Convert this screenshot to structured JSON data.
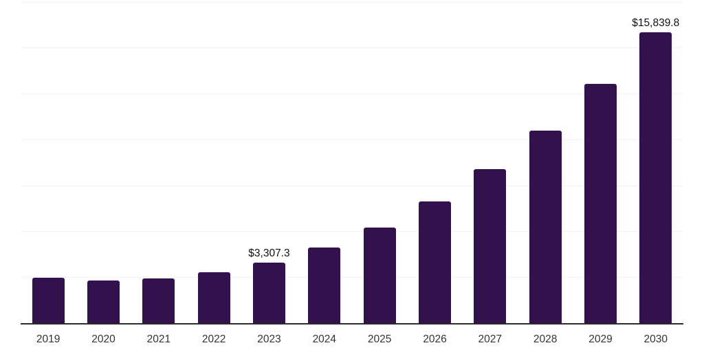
{
  "chart_data": {
    "type": "bar",
    "categories": [
      "2019",
      "2020",
      "2021",
      "2022",
      "2023",
      "2024",
      "2025",
      "2026",
      "2027",
      "2028",
      "2029",
      "2030"
    ],
    "values": [
      2470,
      2330,
      2430,
      2780,
      3307.3,
      4110,
      5200,
      6615,
      8400,
      10500,
      13030,
      15839.8
    ],
    "value_labels": [
      "",
      "",
      "",
      "",
      "$3,307.3",
      "",
      "",
      "",
      "",
      "",
      "",
      "$15,839.8"
    ],
    "title": "",
    "xlabel": "",
    "ylabel": "",
    "ylim": [
      0,
      17500
    ],
    "gridline_step": 2500,
    "grid": true,
    "legend": false
  },
  "colors": {
    "bar": "#33114d",
    "gridline": "#f2f2f2",
    "axis_line": "#2b2b2b",
    "data_label": "#111111",
    "tick_label": "#333333",
    "background": "#ffffff"
  }
}
